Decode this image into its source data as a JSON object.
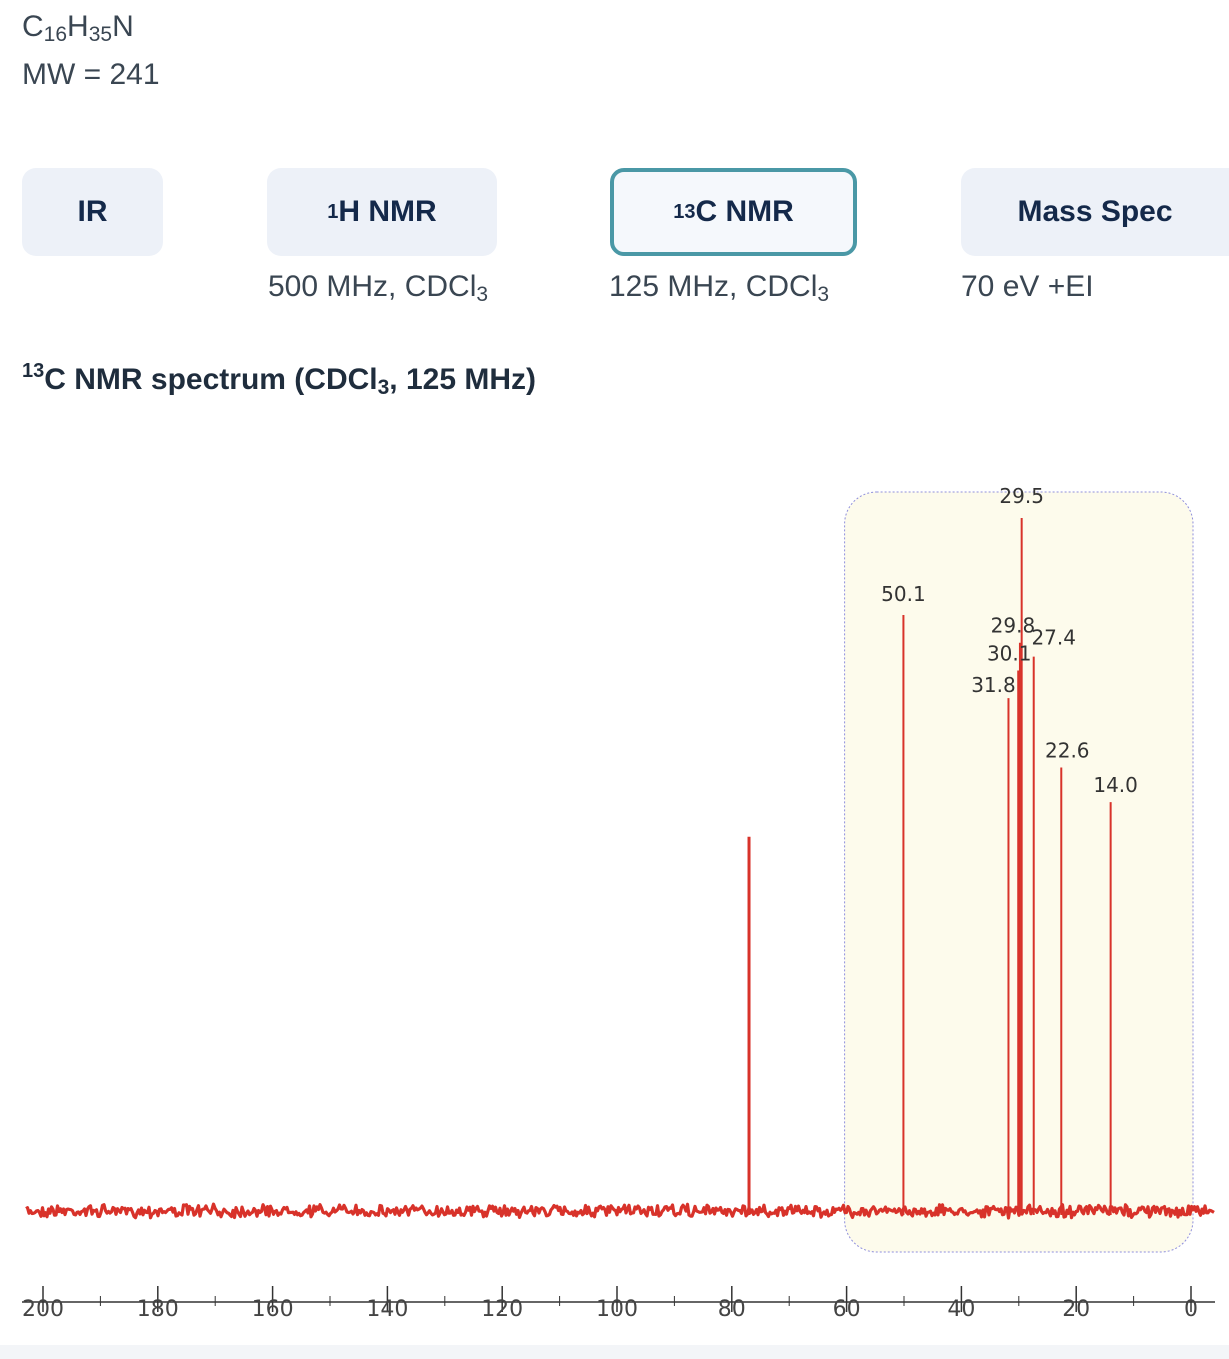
{
  "compound": {
    "formula_parts": [
      "C",
      "16",
      "H",
      "35",
      "N"
    ],
    "mw_label": "MW = 241"
  },
  "tabs": [
    {
      "id": "ir",
      "prefix": "",
      "label": "IR",
      "active": false,
      "condition": ""
    },
    {
      "id": "h-nmr",
      "prefix": "1",
      "label": "H NMR",
      "active": false,
      "condition": {
        "text": "500 MHz, CDCl",
        "sub": "3"
      }
    },
    {
      "id": "c-nmr",
      "prefix": "13",
      "label": "C NMR",
      "active": true,
      "condition": {
        "text": "125 MHz, CDCl",
        "sub": "3"
      }
    },
    {
      "id": "mass-spec",
      "prefix": "",
      "label": "Mass Spec",
      "active": false,
      "condition": {
        "text": "70 eV +EI",
        "sub": ""
      }
    }
  ],
  "spectrum_title": {
    "sup": "13",
    "main": "C NMR spectrum (CDCl",
    "sub": "3",
    "tail": ", 125 MHz)"
  },
  "colors": {
    "accent": "#4a98a6",
    "tab_bg": "#edf1f8",
    "trace": "#d8322a",
    "highlight_bg": "#fdfbec",
    "highlight_border": "#8f8fdc"
  },
  "chart_data": {
    "type": "line",
    "xlabel": "",
    "ylabel": "",
    "xlim": [
      200,
      0
    ],
    "x_reversed": true,
    "x_ticks": [
      200,
      180,
      160,
      140,
      120,
      100,
      80,
      60,
      40,
      20,
      0
    ],
    "peaks": [
      {
        "ppm": 77.0,
        "intensity": 0.54,
        "label": ""
      },
      {
        "ppm": 50.1,
        "intensity": 0.86,
        "label": "50.1"
      },
      {
        "ppm": 31.8,
        "intensity": 0.74,
        "label": "31.8"
      },
      {
        "ppm": 30.1,
        "intensity": 0.78,
        "label": "30.1"
      },
      {
        "ppm": 29.8,
        "intensity": 0.82,
        "label": "29.8"
      },
      {
        "ppm": 29.5,
        "intensity": 1.0,
        "label": "29.5"
      },
      {
        "ppm": 27.4,
        "intensity": 0.8,
        "label": "27.4"
      },
      {
        "ppm": 22.6,
        "intensity": 0.64,
        "label": "22.6"
      },
      {
        "ppm": 14.0,
        "intensity": 0.59,
        "label": "14.0"
      }
    ],
    "highlight_region": [
      60,
      0
    ]
  }
}
